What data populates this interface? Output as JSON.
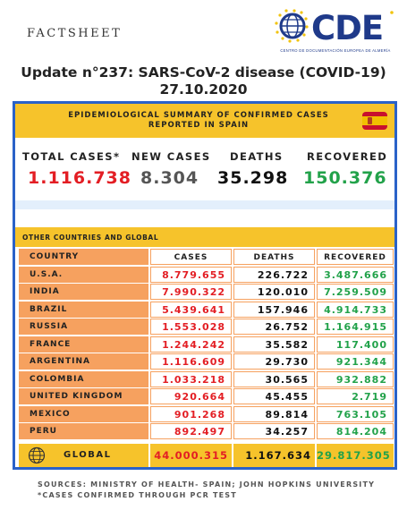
{
  "header": {
    "factsheet": "FACTSHEET",
    "logo": {
      "name": "CDE",
      "tagline": "CENTRO DE DOCUMENTACIÓN EUROPEA DE ALMERÍA",
      "primary": "#1f3a8a",
      "star": "#f1c40f"
    }
  },
  "title": "Update n°237: SARS-CoV-2 disease (COVID-19) 27.10.2020",
  "epi": {
    "heading_line1": "EPIDEMIOLOGICAL SUMMARY OF CONFIRMED CASES",
    "heading_line2": "REPORTED IN SPAIN",
    "flag_icon": "spain-flag-icon"
  },
  "totals": {
    "total_cases_label": "TOTAL CASES*",
    "new_cases_label": "NEW CASES",
    "deaths_label": "DEATHS",
    "recovered_label": "RECOVERED",
    "total_cases": "1.116.738",
    "new_cases": "8.304",
    "deaths": "35.298",
    "recovered": "150.376"
  },
  "colors": {
    "cases": "#e31e24",
    "new_cases": "#555555",
    "deaths": "#111111",
    "recovered": "#22a24a",
    "panel_border": "#2a62c8",
    "highlight": "#f6c32b",
    "country_bg": "#f6a15f"
  },
  "other": {
    "heading": "OTHER COUNTRIES AND GLOBAL"
  },
  "table": {
    "headers": {
      "country": "COUNTRY",
      "cases": "CASES",
      "deaths": "DEATHS",
      "recovered": "RECOVERED"
    },
    "rows": [
      {
        "country": "U.S.A.",
        "cases": "8.779.655",
        "deaths": "226.722",
        "recovered": "3.487.666"
      },
      {
        "country": "INDIA",
        "cases": "7.990.322",
        "deaths": "120.010",
        "recovered": "7.259.509"
      },
      {
        "country": "BRAZIL",
        "cases": "5.439.641",
        "deaths": "157.946",
        "recovered": "4.914.733"
      },
      {
        "country": "RUSSIA",
        "cases": "1.553.028",
        "deaths": "26.752",
        "recovered": "1.164.915"
      },
      {
        "country": "FRANCE",
        "cases": "1.244.242",
        "deaths": "35.582",
        "recovered": "117.400"
      },
      {
        "country": "ARGENTINA",
        "cases": "1.116.609",
        "deaths": "29.730",
        "recovered": "921.344"
      },
      {
        "country": "COLOMBIA",
        "cases": "1.033.218",
        "deaths": "30.565",
        "recovered": "932.882"
      },
      {
        "country": "UNITED KINGDOM",
        "cases": "920.664",
        "deaths": "45.455",
        "recovered": "2.719"
      },
      {
        "country": "MEXICO",
        "cases": "901.268",
        "deaths": "89.814",
        "recovered": "763.105"
      },
      {
        "country": "PERU",
        "cases": "892.497",
        "deaths": "34.257",
        "recovered": "814.204"
      }
    ],
    "global": {
      "label": "GLOBAL",
      "icon": "globe-icon",
      "cases": "44.000.315",
      "deaths": "1.167.634",
      "recovered": "29.817.305"
    }
  },
  "footer": {
    "sources": "SOURCES: MINISTRY OF HEALTH- SPAIN; JOHN HOPKINS UNIVERSITY",
    "note": "*CASES CONFIRMED THROUGH PCR TEST"
  }
}
